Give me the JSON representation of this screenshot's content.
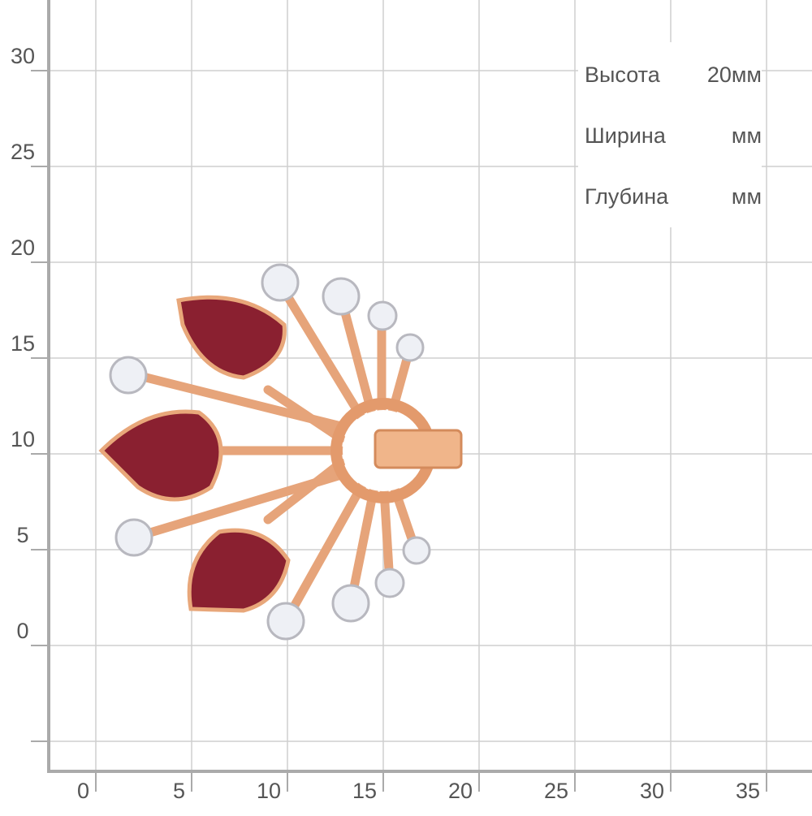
{
  "grid": {
    "x_labels": [
      0,
      5,
      10,
      15,
      20,
      25,
      30,
      35
    ],
    "y_labels": [
      30,
      25,
      20,
      15,
      10,
      5,
      0
    ]
  },
  "dimensions": [
    {
      "label": "Высота",
      "value": "20мм"
    },
    {
      "label": "Ширина",
      "value": "мм"
    },
    {
      "label": "Глубина",
      "value": "мм"
    }
  ]
}
